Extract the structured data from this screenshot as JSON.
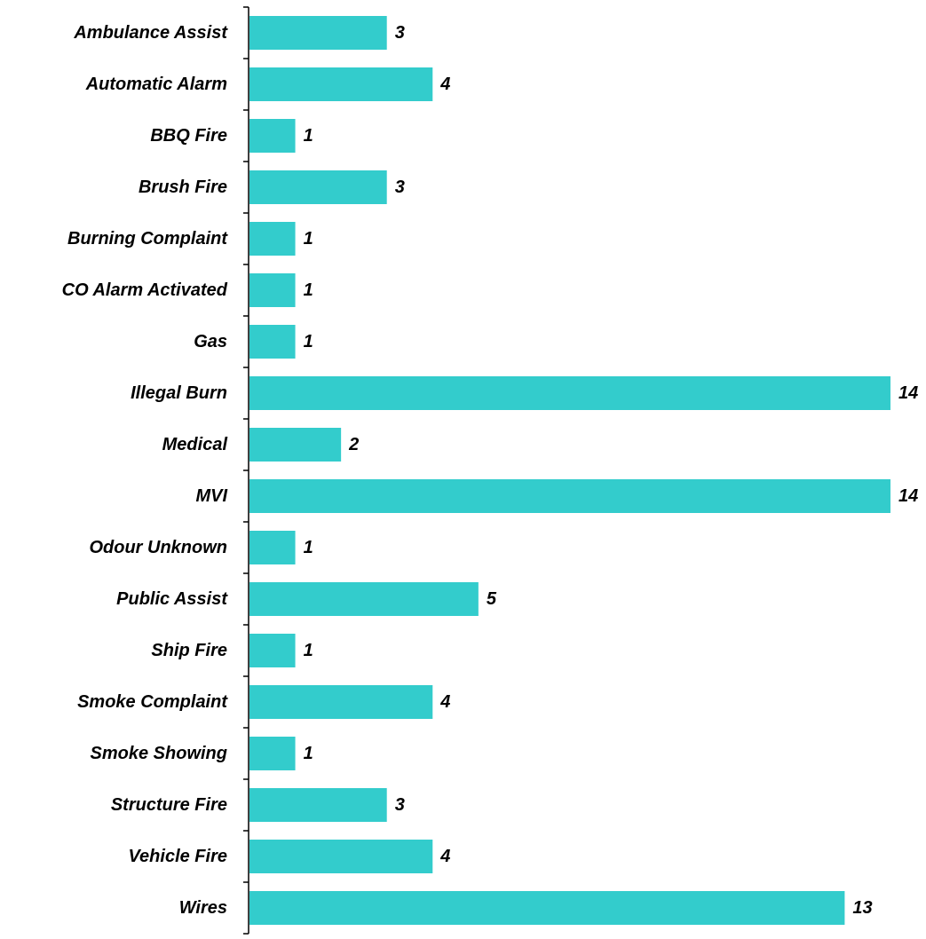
{
  "chart_data": {
    "type": "bar",
    "orientation": "horizontal",
    "categories": [
      "Ambulance Assist",
      "Automatic Alarm",
      "BBQ Fire",
      "Brush Fire",
      "Burning Complaint",
      "CO Alarm Activated",
      "Gas",
      "Illegal Burn",
      "Medical",
      "MVI",
      "Odour Unknown",
      "Public Assist",
      "Ship Fire",
      "Smoke Complaint",
      "Smoke Showing",
      "Structure Fire",
      "Vehicle Fire",
      "Wires"
    ],
    "values": [
      3,
      4,
      1,
      3,
      1,
      1,
      1,
      14,
      2,
      14,
      1,
      5,
      1,
      4,
      1,
      3,
      4,
      13
    ],
    "xlim": [
      0,
      14
    ],
    "data_labels": true,
    "grid": false,
    "legend": "none",
    "bar_color": "#33CCCC",
    "axis_color": "#000000",
    "title": "",
    "xlabel": "",
    "ylabel": ""
  }
}
